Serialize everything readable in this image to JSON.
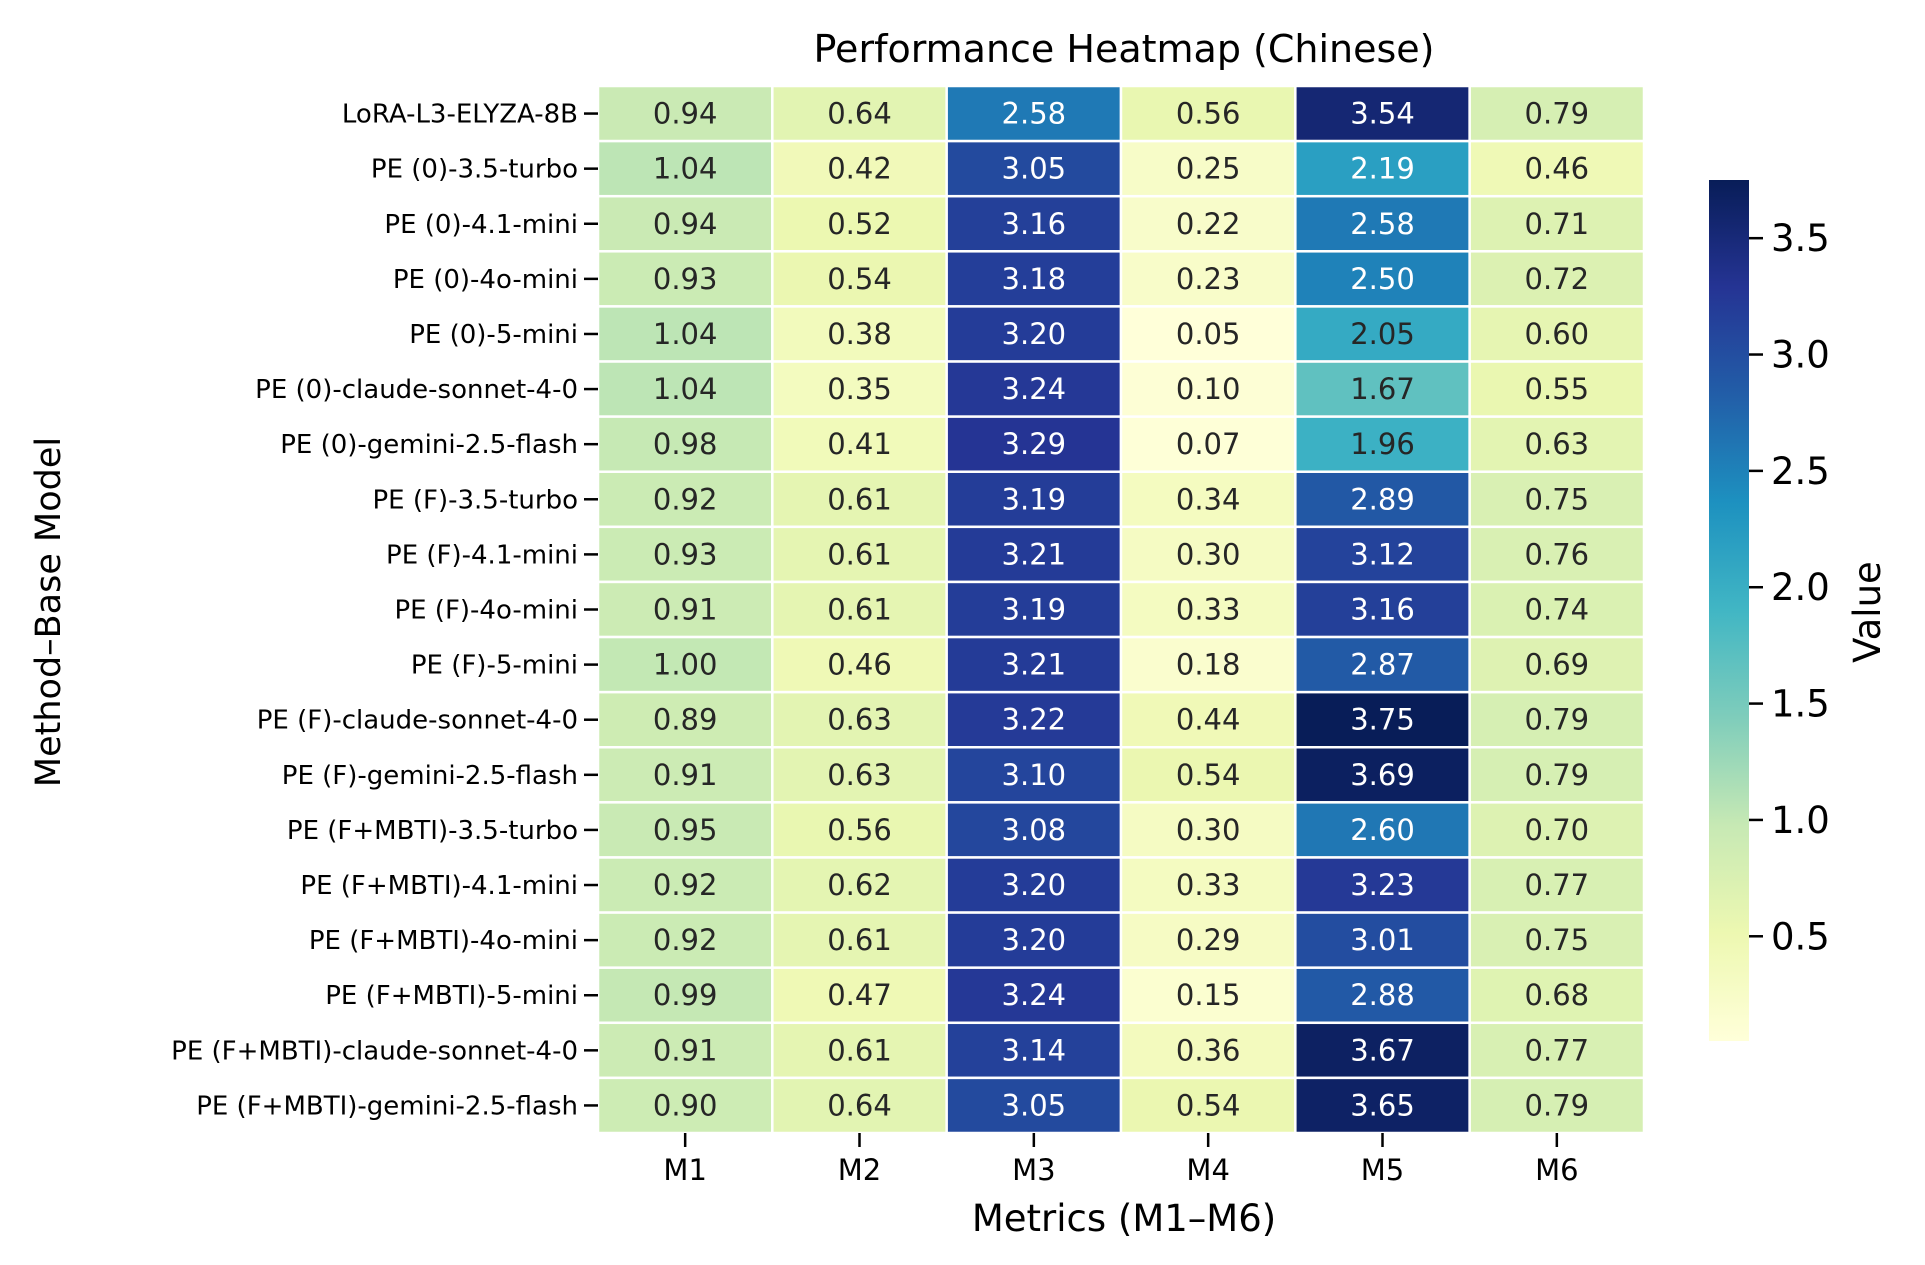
{
  "chart_data": {
    "type": "heatmap",
    "title": "Performance Heatmap (Chinese)",
    "xlabel": "Metrics (M1–M6)",
    "ylabel": "Method–Base Model",
    "columns": [
      "M1",
      "M2",
      "M3",
      "M4",
      "M5",
      "M6"
    ],
    "rows": [
      "LoRA-L3-ELYZA-8B",
      "PE (0)-3.5-turbo",
      "PE (0)-4.1-mini",
      "PE (0)-4o-mini",
      "PE (0)-5-mini",
      "PE (0)-claude-sonnet-4-0",
      "PE (0)-gemini-2.5-flash",
      "PE (F)-3.5-turbo",
      "PE (F)-4.1-mini",
      "PE (F)-4o-mini",
      "PE (F)-5-mini",
      "PE (F)-claude-sonnet-4-0",
      "PE (F)-gemini-2.5-flash",
      "PE (F+MBTI)-3.5-turbo",
      "PE (F+MBTI)-4.1-mini",
      "PE (F+MBTI)-4o-mini",
      "PE (F+MBTI)-5-mini",
      "PE (F+MBTI)-claude-sonnet-4-0",
      "PE (F+MBTI)-gemini-2.5-flash"
    ],
    "values": [
      [
        "0.94",
        "0.64",
        "2.58",
        "0.56",
        "3.54",
        "0.79"
      ],
      [
        "1.04",
        "0.42",
        "3.05",
        "0.25",
        "2.19",
        "0.46"
      ],
      [
        "0.94",
        "0.52",
        "3.16",
        "0.22",
        "2.58",
        "0.71"
      ],
      [
        "0.93",
        "0.54",
        "3.18",
        "0.23",
        "2.50",
        "0.72"
      ],
      [
        "1.04",
        "0.38",
        "3.20",
        "0.05",
        "2.05",
        "0.60"
      ],
      [
        "1.04",
        "0.35",
        "3.24",
        "0.10",
        "1.67",
        "0.55"
      ],
      [
        "0.98",
        "0.41",
        "3.29",
        "0.07",
        "1.96",
        "0.63"
      ],
      [
        "0.92",
        "0.61",
        "3.19",
        "0.34",
        "2.89",
        "0.75"
      ],
      [
        "0.93",
        "0.61",
        "3.21",
        "0.30",
        "3.12",
        "0.76"
      ],
      [
        "0.91",
        "0.61",
        "3.19",
        "0.33",
        "3.16",
        "0.74"
      ],
      [
        "1.00",
        "0.46",
        "3.21",
        "0.18",
        "2.87",
        "0.69"
      ],
      [
        "0.89",
        "0.63",
        "3.22",
        "0.44",
        "3.75",
        "0.79"
      ],
      [
        "0.91",
        "0.63",
        "3.10",
        "0.54",
        "3.69",
        "0.79"
      ],
      [
        "0.95",
        "0.56",
        "3.08",
        "0.30",
        "2.60",
        "0.70"
      ],
      [
        "0.92",
        "0.62",
        "3.20",
        "0.33",
        "3.23",
        "0.77"
      ],
      [
        "0.92",
        "0.61",
        "3.20",
        "0.29",
        "3.01",
        "0.75"
      ],
      [
        "0.99",
        "0.47",
        "3.24",
        "0.15",
        "2.88",
        "0.68"
      ],
      [
        "0.91",
        "0.61",
        "3.14",
        "0.36",
        "3.67",
        "0.77"
      ],
      [
        "0.90",
        "0.64",
        "3.05",
        "0.54",
        "3.65",
        "0.79"
      ]
    ],
    "colormap": "YlGnBu",
    "vmin": 0.05,
    "vmax": 3.75,
    "colorbar": {
      "label": "Value",
      "ticks": [
        0.5,
        1.0,
        1.5,
        2.0,
        2.5,
        3.0,
        3.5
      ],
      "tick_labels": [
        "0.5",
        "1.0",
        "1.5",
        "2.0",
        "2.5",
        "3.0",
        "3.5"
      ]
    },
    "annotate": true,
    "cell_border_color": "#ffffff"
  }
}
